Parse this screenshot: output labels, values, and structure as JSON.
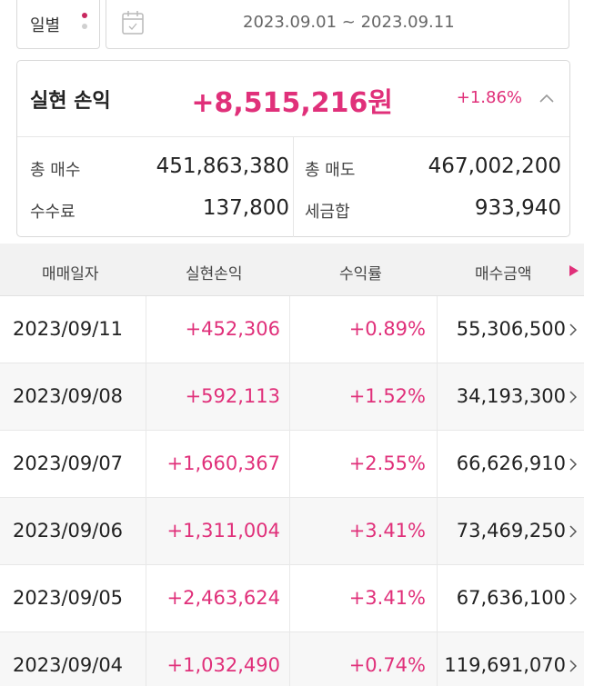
{
  "controls": {
    "period_label": "일별",
    "date_range": "2023.09.01 ~ 2023.09.11"
  },
  "summary": {
    "title": "실현 손익",
    "amount": "+8,515,216원",
    "percent": "+1.86%",
    "items": [
      {
        "label": "총 매수",
        "value": "451,863,380"
      },
      {
        "label": "총 매도",
        "value": "467,002,200"
      },
      {
        "label": "수수료",
        "value": "137,800"
      },
      {
        "label": "세금합",
        "value": "933,940"
      }
    ]
  },
  "table": {
    "headers": [
      "매매일자",
      "실현손익",
      "수익률",
      "매수금액"
    ],
    "rows": [
      {
        "date": "2023/09/11",
        "pnl": "+452,306",
        "rate": "+0.89%",
        "buy": "55,306,500"
      },
      {
        "date": "2023/09/08",
        "pnl": "+592,113",
        "rate": "+1.52%",
        "buy": "34,193,300"
      },
      {
        "date": "2023/09/07",
        "pnl": "+1,660,367",
        "rate": "+2.55%",
        "buy": "66,626,910"
      },
      {
        "date": "2023/09/06",
        "pnl": "+1,311,004",
        "rate": "+3.41%",
        "buy": "73,469,250"
      },
      {
        "date": "2023/09/05",
        "pnl": "+2,463,624",
        "rate": "+3.41%",
        "buy": "67,636,100"
      },
      {
        "date": "2023/09/04",
        "pnl": "+1,032,490",
        "rate": "+0.74%",
        "buy": "119,691,070"
      }
    ]
  },
  "colors": {
    "accent": "#e0307a",
    "header_bg": "#f2f2f2",
    "alt_row_bg": "#f7f7f7"
  },
  "icons": [
    "more-vertical-icon",
    "calendar-icon",
    "chevron-up-icon",
    "scroll-right-icon",
    "chevron-right-icon"
  ]
}
